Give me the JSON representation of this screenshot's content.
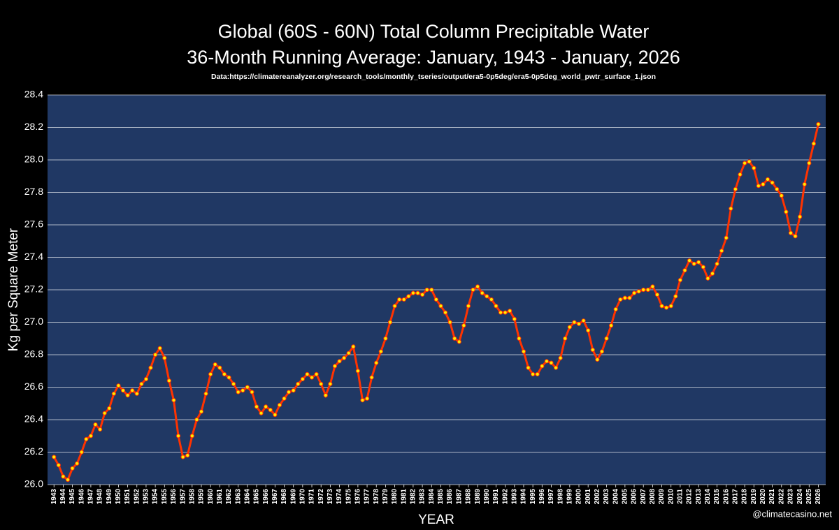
{
  "chart_data": {
    "type": "line",
    "title": "Global (60S - 60N) Total Column Precipitable Water",
    "subtitle": "36-Month Running Average: January, 1943 - January, 2026",
    "source": "Data:https://climatereanalyzer.org/research_tools/monthly_tseries/output/era5-0p5deg/era5-0p5deg_world_pwtr_surface_1.json",
    "x_label": "YEAR",
    "y_label": "Kg per Square Meter",
    "annotation": "@climatecasino.net",
    "background": "#000000",
    "plot_background": "#203864",
    "grid": true,
    "xlim": [
      1942.3,
      2026.8
    ],
    "ylim": [
      26.0,
      28.4
    ],
    "yticks": [
      {
        "value": 26,
        "label": "26.0"
      },
      26.2,
      26.4,
      26.6,
      26.8,
      {
        "value": 27,
        "label": "27.0"
      },
      27.2,
      27.4,
      27.6,
      27.8,
      {
        "value": 28,
        "label": "28.0"
      },
      28.2,
      28.4
    ],
    "xticks": [
      1943,
      1944,
      1945,
      1946,
      1947,
      1948,
      1949,
      1950,
      1951,
      1952,
      1953,
      1954,
      1955,
      1956,
      1957,
      1958,
      1959,
      1960,
      1961,
      1962,
      1963,
      1964,
      1965,
      1966,
      1967,
      1968,
      1969,
      1970,
      1971,
      1972,
      1973,
      1974,
      1975,
      1976,
      1977,
      1978,
      1979,
      1980,
      1981,
      1982,
      1983,
      1984,
      1985,
      1986,
      1987,
      1988,
      1989,
      1990,
      1991,
      1992,
      1993,
      1994,
      1995,
      1996,
      1997,
      1998,
      1999,
      2000,
      2001,
      2002,
      2003,
      2004,
      2005,
      2006,
      2007,
      2008,
      2009,
      2010,
      2011,
      2012,
      2013,
      2014,
      2015,
      2016,
      2017,
      2018,
      2019,
      2020,
      2021,
      2022,
      2023,
      2024,
      2025,
      2026
    ],
    "x": [
      1943,
      1943.5,
      1944,
      1944.5,
      1945,
      1945.5,
      1946,
      1946.5,
      1947,
      1947.5,
      1948,
      1948.5,
      1949,
      1949.5,
      1950,
      1950.5,
      1951,
      1951.5,
      1952,
      1952.5,
      1953,
      1953.5,
      1954,
      1954.5,
      1955,
      1955.5,
      1956,
      1956.5,
      1957,
      1957.5,
      1958,
      1958.5,
      1959,
      1959.5,
      1960,
      1960.5,
      1961,
      1961.5,
      1962,
      1962.5,
      1963,
      1963.5,
      1964,
      1964.5,
      1965,
      1965.5,
      1966,
      1966.5,
      1967,
      1967.5,
      1968,
      1968.5,
      1969,
      1969.5,
      1970,
      1970.5,
      1971,
      1971.5,
      1972,
      1972.5,
      1973,
      1973.5,
      1974,
      1974.5,
      1975,
      1975.5,
      1976,
      1976.5,
      1977,
      1977.5,
      1978,
      1978.5,
      1979,
      1979.5,
      1980,
      1980.5,
      1981,
      1981.5,
      1982,
      1982.5,
      1983,
      1983.5,
      1984,
      1984.5,
      1985,
      1985.5,
      1986,
      1986.5,
      1987,
      1987.5,
      1988,
      1988.5,
      1989,
      1989.5,
      1990,
      1990.5,
      1991,
      1991.5,
      1992,
      1992.5,
      1993,
      1993.5,
      1994,
      1994.5,
      1995,
      1995.5,
      1996,
      1996.5,
      1997,
      1997.5,
      1998,
      1998.5,
      1999,
      1999.5,
      2000,
      2000.5,
      2001,
      2001.5,
      2002,
      2002.5,
      2003,
      2003.5,
      2004,
      2004.5,
      2005,
      2005.5,
      2006,
      2006.5,
      2007,
      2007.5,
      2008,
      2008.5,
      2009,
      2009.5,
      2010,
      2010.5,
      2011,
      2011.5,
      2012,
      2012.5,
      2013,
      2013.5,
      2014,
      2014.5,
      2015,
      2015.5,
      2016,
      2016.5,
      2017,
      2017.5,
      2018,
      2018.5,
      2019,
      2019.5,
      2020,
      2020.5,
      2021,
      2021.5,
      2022,
      2022.5,
      2023,
      2023.5,
      2024,
      2024.5,
      2025,
      2025.5,
      2026
    ],
    "series": [
      {
        "name": "36-Month Running Average",
        "color": "#ffee00",
        "line_color": "#ff3300",
        "values": [
          26.17,
          26.12,
          26.05,
          26.03,
          26.1,
          26.13,
          26.2,
          26.28,
          26.3,
          26.37,
          26.34,
          26.44,
          26.47,
          26.56,
          26.61,
          26.58,
          26.55,
          26.58,
          26.56,
          26.62,
          26.65,
          26.72,
          26.8,
          26.84,
          26.78,
          26.64,
          26.52,
          26.3,
          26.17,
          26.18,
          26.3,
          26.4,
          26.45,
          26.56,
          26.68,
          26.74,
          26.72,
          26.68,
          26.66,
          26.62,
          26.57,
          26.58,
          26.6,
          26.57,
          26.48,
          26.44,
          26.48,
          26.46,
          26.43,
          26.49,
          26.53,
          26.57,
          26.58,
          26.62,
          26.65,
          26.68,
          26.66,
          26.68,
          26.62,
          26.55,
          26.62,
          26.73,
          26.76,
          26.78,
          26.81,
          26.85,
          26.7,
          26.52,
          26.53,
          26.66,
          26.75,
          26.82,
          26.9,
          27.0,
          27.1,
          27.14,
          27.14,
          27.16,
          27.18,
          27.18,
          27.17,
          27.2,
          27.2,
          27.14,
          27.1,
          27.06,
          27.0,
          26.9,
          26.88,
          26.98,
          27.1,
          27.2,
          27.22,
          27.18,
          27.16,
          27.14,
          27.1,
          27.06,
          27.06,
          27.07,
          27.02,
          26.9,
          26.82,
          26.72,
          26.68,
          26.68,
          26.73,
          26.76,
          26.75,
          26.72,
          26.78,
          26.9,
          26.97,
          27.0,
          26.99,
          27.01,
          26.95,
          26.83,
          26.77,
          26.82,
          26.9,
          26.98,
          27.08,
          27.14,
          27.15,
          27.15,
          27.18,
          27.19,
          27.2,
          27.2,
          27.22,
          27.17,
          27.1,
          27.09,
          27.1,
          27.16,
          27.26,
          27.32,
          27.38,
          27.36,
          27.37,
          27.34,
          27.27,
          27.3,
          27.36,
          27.44,
          27.52,
          27.7,
          27.82,
          27.91,
          27.98,
          27.99,
          27.95,
          27.84,
          27.85,
          27.88,
          27.86,
          27.82,
          27.78,
          27.68,
          27.55,
          27.53,
          27.65,
          27.85,
          27.98,
          28.1,
          28.22
        ]
      }
    ]
  }
}
